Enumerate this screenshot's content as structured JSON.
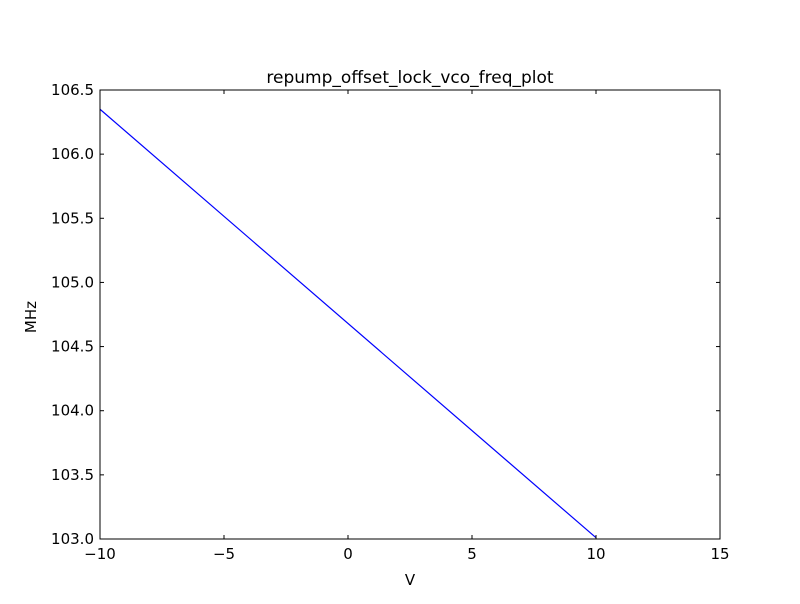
{
  "chart_data": {
    "type": "line",
    "title": "repump_offset_lock_vco_freq_plot",
    "xlabel": "V",
    "ylabel": "MHz",
    "xlim": [
      -10,
      15
    ],
    "ylim": [
      103.0,
      106.5
    ],
    "x_ticks": [
      "−10",
      "−5",
      "0",
      "5",
      "10",
      "15"
    ],
    "y_ticks": [
      "103.0",
      "103.5",
      "104.0",
      "104.5",
      "105.0",
      "105.5",
      "106.0",
      "106.5"
    ],
    "grid": false,
    "series": [
      {
        "color": "#0000ff",
        "x": [
          -10,
          10
        ],
        "y": [
          106.35,
          103.01
        ]
      }
    ]
  }
}
